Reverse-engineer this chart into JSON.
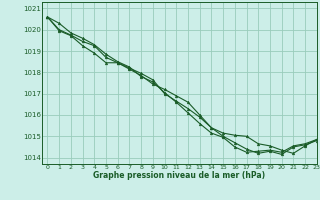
{
  "title": "Graphe pression niveau de la mer (hPa)",
  "bg_color": "#cceee8",
  "grid_color": "#99ccbb",
  "line_color": "#1a5c28",
  "xlim": [
    -0.5,
    23
  ],
  "ylim": [
    1013.7,
    1021.3
  ],
  "xticks": [
    0,
    1,
    2,
    3,
    4,
    5,
    6,
    7,
    8,
    9,
    10,
    11,
    12,
    13,
    14,
    15,
    16,
    17,
    18,
    19,
    20,
    21,
    22,
    23
  ],
  "yticks": [
    1014,
    1015,
    1016,
    1017,
    1018,
    1019,
    1020,
    1021
  ],
  "series": [
    [
      1020.6,
      1020.3,
      1019.85,
      1019.6,
      1019.3,
      1018.85,
      1018.5,
      1018.25,
      1017.8,
      1017.55,
      1017.05,
      1016.6,
      1016.1,
      1015.6,
      1015.15,
      1014.95,
      1014.5,
      1014.25,
      1014.3,
      1014.35,
      1014.25,
      1014.55,
      1014.65,
      1014.85
    ],
    [
      1020.6,
      1020.0,
      1019.75,
      1019.45,
      1019.25,
      1018.7,
      1018.45,
      1018.2,
      1017.95,
      1017.65,
      1017.0,
      1016.65,
      1016.3,
      1015.9,
      1015.4,
      1015.15,
      1015.05,
      1015.0,
      1014.65,
      1014.55,
      1014.35,
      1014.2,
      1014.55,
      1014.85
    ],
    [
      1020.6,
      1019.95,
      1019.72,
      1019.25,
      1018.9,
      1018.45,
      1018.45,
      1018.15,
      1017.85,
      1017.45,
      1017.2,
      1016.9,
      1016.6,
      1016.0,
      1015.4,
      1015.0,
      1014.7,
      1014.4,
      1014.2,
      1014.3,
      1014.15,
      1014.5,
      1014.6,
      1014.8
    ]
  ]
}
